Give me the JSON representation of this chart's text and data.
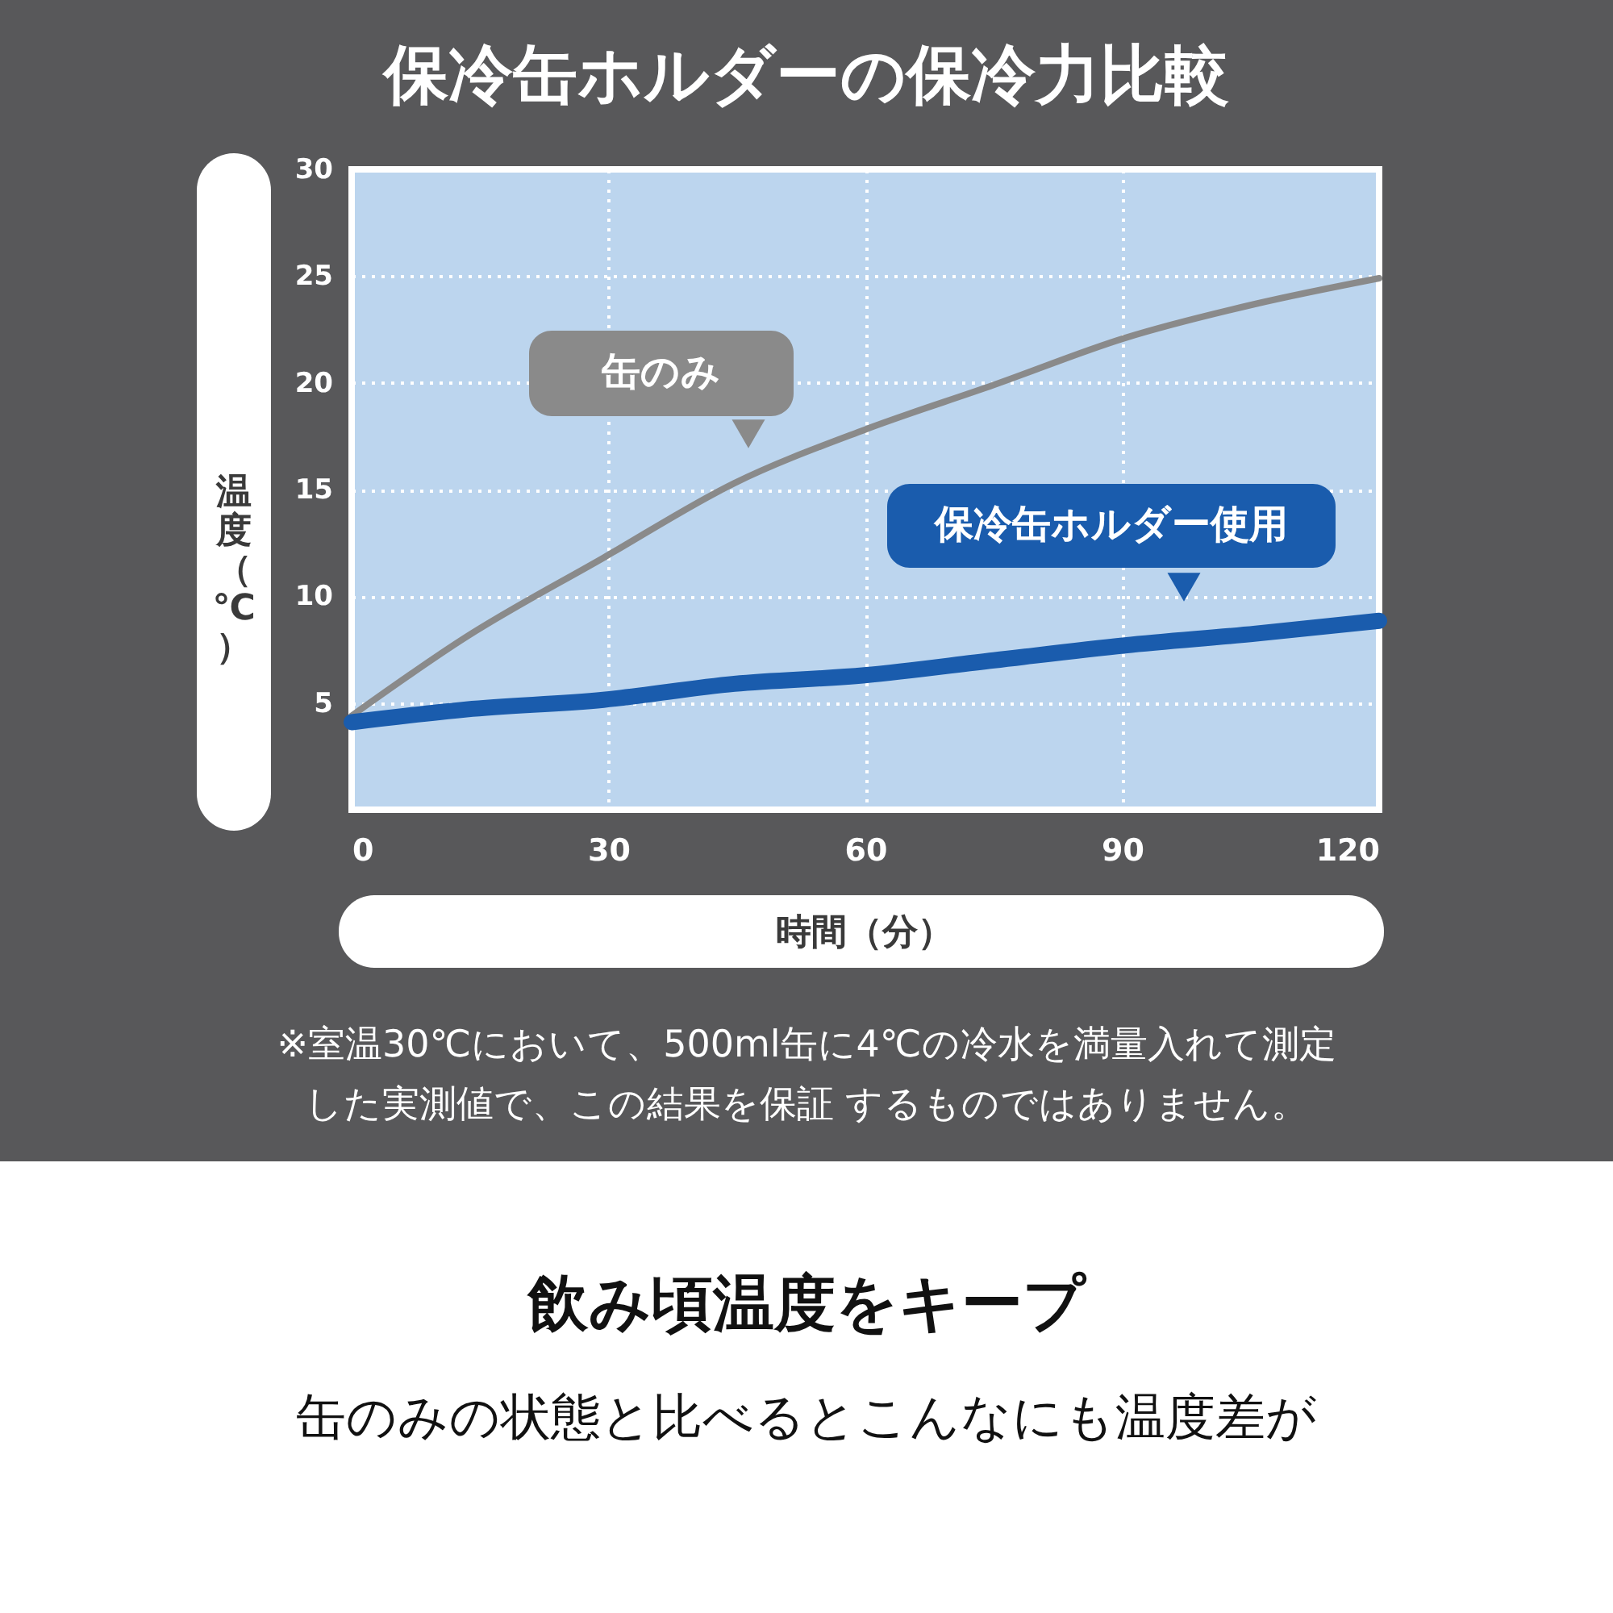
{
  "chart_data": {
    "type": "line",
    "title": "保冷缶ホルダーの保冷力比較",
    "xlabel": "時間（分）",
    "ylabel": "温度（℃）",
    "x": [
      0,
      13.4,
      29.4,
      44.7,
      59.9,
      75,
      90.3,
      105.6,
      120
    ],
    "series": [
      {
        "name": "缶のみ",
        "color": "#8a8a8a",
        "values": [
          4.4,
          8.1,
          11.8,
          15.3,
          17.8,
          19.9,
          22.1,
          23.7,
          24.9
        ]
      },
      {
        "name": "保冷缶ホルダー使用",
        "color": "#1a5cad",
        "values": [
          4.1,
          4.7,
          5.15,
          5.9,
          6.3,
          7.0,
          7.7,
          8.25,
          8.85
        ]
      }
    ],
    "xlim": [
      0,
      120
    ],
    "xticks": [
      0,
      30,
      60,
      90,
      120
    ],
    "ylim": [
      0,
      30
    ],
    "yticks": [
      5,
      10,
      15,
      20,
      25,
      30
    ],
    "grid": true,
    "legend": false,
    "marker": "none",
    "line_style": "solid",
    "annotations": [
      "※室温30℃において、500ml缶に4℃の冷水を満量入れて測定",
      "した実測値で、この結果を保証 するものではありません。",
      "飲み頃温度をキープ",
      "缶のみの状態と比べるとこんなにも温度差が"
    ]
  }
}
